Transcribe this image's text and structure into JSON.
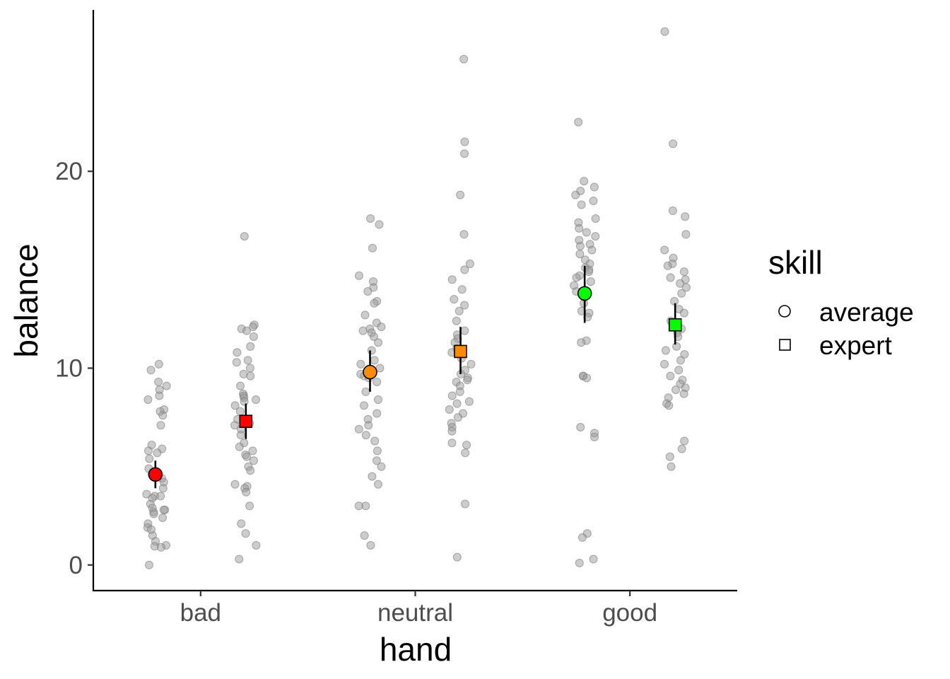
{
  "chart_data": {
    "type": "scatter",
    "title": "",
    "xlabel": "hand",
    "ylabel": "balance",
    "categories": [
      "bad",
      "neutral",
      "good"
    ],
    "ylim": [
      -1.3,
      28.2
    ],
    "yticks": [
      0,
      10,
      20
    ],
    "ytick_labels": [
      "0",
      "10",
      "20"
    ],
    "grid": false,
    "legend": {
      "title": "skill",
      "placement": "right",
      "entries": [
        {
          "label": "average",
          "shape": "circle"
        },
        {
          "label": "expert",
          "shape": "square"
        }
      ]
    },
    "colors": {
      "bad": "#ff0000",
      "neutral": "#ff8c00",
      "good": "#00ff00",
      "points": "#999999"
    },
    "series": [
      {
        "category": "bad",
        "skill": "average",
        "mean": 4.6,
        "ci": [
          3.9,
          5.3
        ],
        "raw": [
          10.2,
          9.9,
          9.3,
          9.1,
          8.9,
          8.6,
          8.4,
          7.9,
          7.8,
          7.6,
          7.1,
          6.1,
          5.9,
          5.8,
          5.7,
          5.4,
          4.9,
          4.4,
          4.2,
          3.9,
          3.6,
          3.5,
          3.5,
          3.4,
          3.1,
          2.9,
          2.8,
          2.8,
          2.7,
          2.6,
          2.4,
          2.1,
          1.9,
          1.8,
          1.5,
          1.2,
          1.0,
          0.95,
          0.9,
          0.0
        ]
      },
      {
        "category": "bad",
        "skill": "expert",
        "mean": 7.3,
        "ci": [
          6.4,
          8.2
        ],
        "raw": [
          16.7,
          12.2,
          12.1,
          12.0,
          11.9,
          11.6,
          11.1,
          10.8,
          10.4,
          10.3,
          10.0,
          9.7,
          9.6,
          9.1,
          8.7,
          8.6,
          8.5,
          8.4,
          8.3,
          8.1,
          7.8,
          7.4,
          7.2,
          7.1,
          6.9,
          6.6,
          6.2,
          6.0,
          5.8,
          5.6,
          5.5,
          5.3,
          5.0,
          4.8,
          4.1,
          4.0,
          3.9,
          3.7,
          3.0,
          2.1,
          1.6,
          1.0,
          0.3
        ]
      },
      {
        "category": "neutral",
        "skill": "average",
        "mean": 9.8,
        "ci": [
          8.8,
          10.9
        ],
        "raw": [
          17.6,
          17.3,
          16.1,
          14.7,
          14.4,
          14.1,
          13.9,
          13.4,
          13.3,
          12.7,
          12.3,
          12.1,
          12.0,
          11.9,
          11.8,
          11.6,
          11.3,
          10.9,
          10.4,
          10.2,
          10.0,
          9.7,
          9.6,
          9.5,
          9.3,
          8.8,
          8.4,
          8.1,
          7.7,
          7.4,
          7.1,
          6.9,
          6.6,
          6.3,
          5.8,
          5.3,
          5.0,
          4.5,
          4.1,
          3.0,
          3.0,
          1.5,
          1.0
        ]
      },
      {
        "category": "neutral",
        "skill": "expert",
        "mean": 10.85,
        "ci": [
          9.7,
          12.1
        ],
        "raw": [
          25.7,
          21.5,
          20.9,
          18.8,
          16.8,
          15.3,
          15.0,
          14.5,
          14.0,
          13.5,
          13.2,
          12.9,
          12.4,
          11.9,
          11.7,
          11.5,
          11.3,
          11.0,
          10.8,
          10.5,
          10.2,
          9.9,
          9.7,
          9.5,
          9.4,
          9.3,
          9.1,
          8.8,
          8.6,
          8.3,
          8.2,
          7.9,
          7.7,
          7.5,
          7.2,
          7.0,
          6.8,
          6.2,
          6.1,
          5.7,
          3.1,
          0.4
        ]
      },
      {
        "category": "good",
        "skill": "average",
        "mean": 13.8,
        "ci": [
          12.3,
          15.2
        ],
        "raw": [
          22.5,
          19.5,
          19.2,
          19.0,
          18.8,
          18.5,
          18.3,
          17.6,
          17.4,
          17.1,
          16.9,
          16.7,
          16.5,
          16.3,
          16.2,
          16.0,
          15.8,
          15.5,
          15.3,
          15.1,
          15.0,
          14.9,
          14.7,
          14.6,
          14.4,
          14.2,
          13.9,
          13.6,
          13.3,
          12.9,
          12.8,
          12.6,
          11.4,
          11.3,
          9.6,
          9.6,
          9.5,
          7.0,
          6.7,
          6.5,
          1.6,
          1.4,
          0.3,
          0.1
        ]
      },
      {
        "category": "good",
        "skill": "expert",
        "mean": 12.2,
        "ci": [
          11.2,
          13.3
        ],
        "raw": [
          27.1,
          21.4,
          18.0,
          17.7,
          16.8,
          16.0,
          15.6,
          15.3,
          15.2,
          14.9,
          14.6,
          14.5,
          14.3,
          14.1,
          13.8,
          13.4,
          13.0,
          12.8,
          12.4,
          12.0,
          11.8,
          11.6,
          11.1,
          10.9,
          10.7,
          10.4,
          10.2,
          9.9,
          9.6,
          9.4,
          9.2,
          9.0,
          8.9,
          8.7,
          8.5,
          8.2,
          8.1,
          6.3,
          5.9,
          5.5,
          5.0
        ]
      }
    ]
  }
}
